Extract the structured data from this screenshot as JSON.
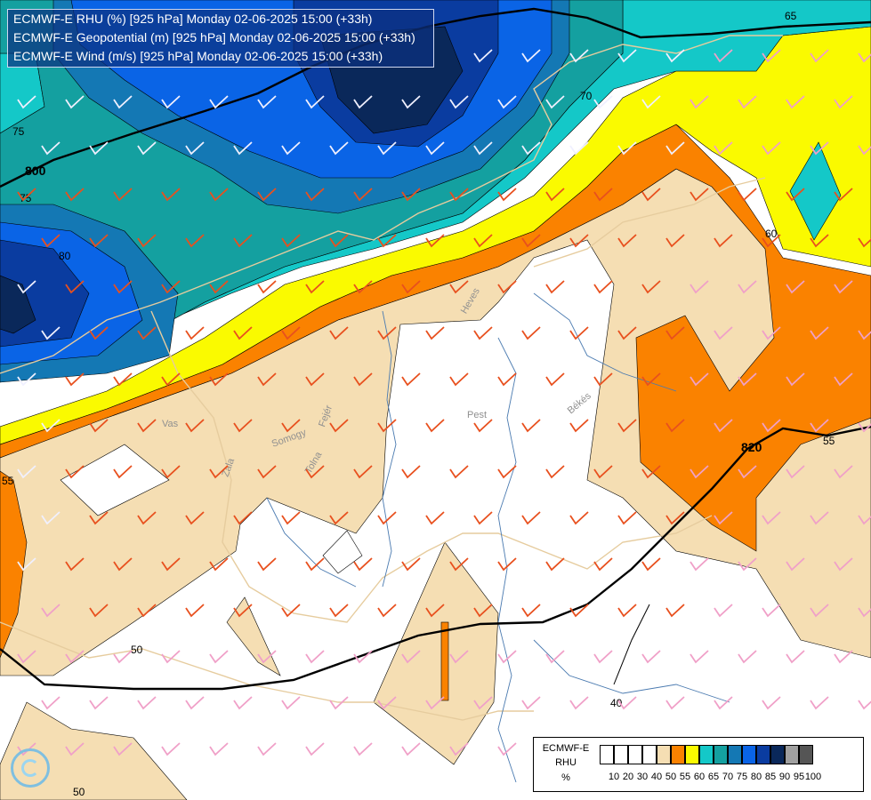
{
  "header": {
    "lines": [
      "ECMWF-E RHU (%) [925 hPa] Monday 02-06-2025 15:00 (+33h)",
      "ECMWF-E Geopotential (m) [925 hPa] Monday 02-06-2025 15:00 (+33h)",
      "ECMWF-E Wind (m/s) [925 hPa] Monday 02-06-2025 15:00 (+33h)"
    ]
  },
  "map": {
    "contour_labels": [
      "800",
      "820",
      "75",
      "80",
      "70",
      "65",
      "60",
      "55",
      "50",
      "40",
      "75",
      "55",
      "50"
    ],
    "region_labels": [
      "Vas",
      "Zala",
      "Somogy",
      "Tolna",
      "Fejér",
      "Pest",
      "Heves",
      "Békés"
    ],
    "colors": {
      "h50": "#f5deb3",
      "h55": "#fa8200",
      "h60": "#fafa00",
      "h65": "#14c8c8",
      "h70": "#14a0a0",
      "h75": "#1478b4",
      "h80": "#0a64e6",
      "h85": "#0a3ca0",
      "h90": "#0a285a",
      "barb_orange": "#e8501e",
      "barb_pink": "#f0a0c8"
    }
  },
  "legend": {
    "title_line1": "ECMWF-E",
    "title_line2": "RHU",
    "title_line3": "%",
    "ticks": [
      "10",
      "20",
      "30",
      "40",
      "50",
      "55",
      "60",
      "65",
      "70",
      "75",
      "80",
      "85",
      "90",
      "95",
      "100"
    ],
    "colors": [
      "#ffffff",
      "#ffffff",
      "#ffffff",
      "#ffffff",
      "#f5deb3",
      "#fa8200",
      "#fafa00",
      "#14c8c8",
      "#14a0a0",
      "#1478b4",
      "#0a64e6",
      "#0a3ca0",
      "#0a285a",
      "#a0a0a0",
      "#555555"
    ]
  },
  "logo": {
    "icon": "ecmwf-swirl-logo-icon"
  }
}
